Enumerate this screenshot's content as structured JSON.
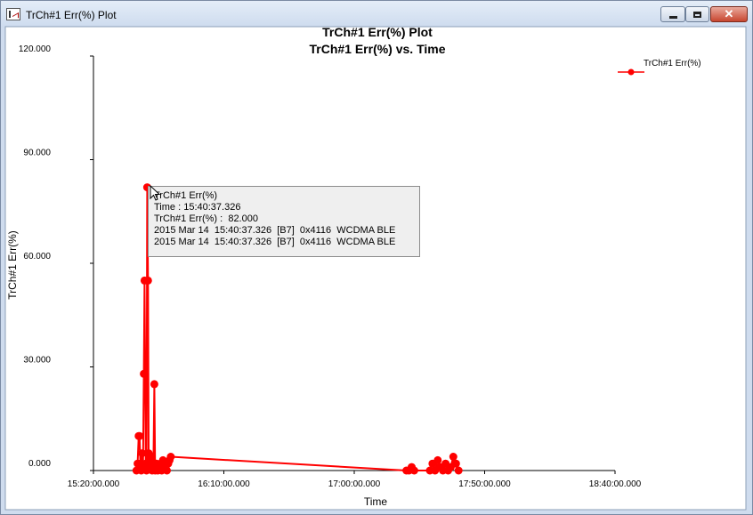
{
  "window": {
    "title": "TrCh#1 Err(%) Plot",
    "icon": "chart-window-icon",
    "close_glyph": "✕"
  },
  "chart_data": {
    "type": "line",
    "title": "TrCh#1 Err(%) Plot",
    "subtitle": "TrCh#1 Err(%) vs. Time",
    "xlabel": "Time",
    "ylabel": "TrCh#1 Err(%)",
    "x_ticks": [
      "15:20:00.000",
      "16:10:00.000",
      "17:00:00.000",
      "17:50:00.000",
      "18:40:00.000"
    ],
    "y_ticks": [
      "0.000",
      "30.000",
      "60.000",
      "90.000",
      "120.000"
    ],
    "xlim": [
      "15:20:00",
      "18:40:00"
    ],
    "ylim": [
      0,
      120
    ],
    "grid": false,
    "legend": "top-right",
    "series": [
      {
        "name": "TrCh#1 Err(%)",
        "color": "#ff0000",
        "points": [
          [
            "15:36:30",
            0
          ],
          [
            "15:36:55",
            2
          ],
          [
            "15:37:20",
            10
          ],
          [
            "15:37:40",
            10
          ],
          [
            "15:38:00",
            2
          ],
          [
            "15:38:20",
            0
          ],
          [
            "15:38:40",
            5
          ],
          [
            "15:39:00",
            1
          ],
          [
            "15:39:20",
            28
          ],
          [
            "15:39:35",
            55
          ],
          [
            "15:39:50",
            28
          ],
          [
            "15:40:05",
            2
          ],
          [
            "15:40:20",
            0
          ],
          [
            "15:40:37",
            82
          ],
          [
            "15:40:55",
            55
          ],
          [
            "15:41:10",
            5
          ],
          [
            "15:41:30",
            3
          ],
          [
            "15:41:50",
            1
          ],
          [
            "15:42:10",
            4
          ],
          [
            "15:42:30",
            0
          ],
          [
            "15:43:00",
            2
          ],
          [
            "15:43:20",
            25
          ],
          [
            "15:43:40",
            0
          ],
          [
            "15:44:10",
            2
          ],
          [
            "15:44:40",
            0
          ],
          [
            "15:45:10",
            1
          ],
          [
            "15:45:40",
            2
          ],
          [
            "15:46:10",
            0
          ],
          [
            "15:46:40",
            3
          ],
          [
            "15:47:10",
            1
          ],
          [
            "15:47:40",
            2
          ],
          [
            "15:48:10",
            0
          ],
          [
            "15:48:40",
            2
          ],
          [
            "15:49:10",
            3
          ],
          [
            "15:49:40",
            4
          ],
          [
            "17:20:00",
            0
          ],
          [
            "17:21:00",
            0
          ],
          [
            "17:22:00",
            1
          ],
          [
            "17:23:00",
            0
          ],
          [
            "17:29:00",
            0
          ],
          [
            "17:30:00",
            2
          ],
          [
            "17:31:00",
            0
          ],
          [
            "17:32:00",
            3
          ],
          [
            "17:33:00",
            1
          ],
          [
            "17:34:00",
            0
          ],
          [
            "17:35:00",
            2
          ],
          [
            "17:36:00",
            0
          ],
          [
            "17:37:00",
            1
          ],
          [
            "17:38:00",
            4
          ],
          [
            "17:39:00",
            2
          ],
          [
            "17:40:00",
            0
          ]
        ]
      }
    ],
    "tooltip": {
      "header": "TrCh#1 Err(%)",
      "time_line": "Time : 15:40:37.326",
      "value_line": "TrCh#1 Err(%) :  82.000",
      "log_line_1": "2015 Mar 14  15:40:37.326  [B7]  0x4116  WCDMA BLE",
      "log_line_2": "2015 Mar 14  15:40:37.326  [B7]  0x4116  WCDMA BLE",
      "x": "15:40:37.326",
      "y": 82
    }
  }
}
